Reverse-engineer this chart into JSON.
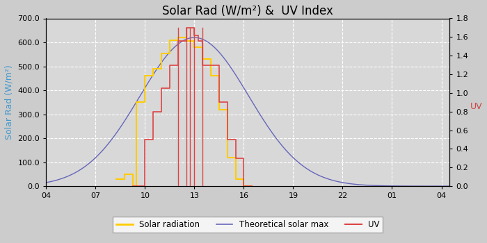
{
  "title": "Solar Rad (W/m²) &  UV Index",
  "ylabel_left": "Solar Rad (W/m²)",
  "ylabel_right": "UV",
  "ylabel_left_color": "#4499cc",
  "ylabel_right_color": "#cc4444",
  "background_color": "#cccccc",
  "plot_background": "#d8d8d8",
  "grid_color": "#bbbbbb",
  "x_ticks": [
    4,
    7,
    10,
    13,
    16,
    19,
    22,
    25,
    28
  ],
  "x_tick_labels": [
    "04",
    "07",
    "10",
    "13",
    "16",
    "19",
    "22",
    "01",
    "04"
  ],
  "xlim": [
    4,
    28.5
  ],
  "ylim_left": [
    0,
    700
  ],
  "ylim_right": [
    0,
    1.8
  ],
  "yticks_left": [
    0,
    100,
    200,
    300,
    400,
    500,
    600,
    700
  ],
  "ytick_labels_left": [
    "0.0",
    "100.0",
    "200.0",
    "300.0",
    "400.0",
    "500.0",
    "600.0",
    "700.0"
  ],
  "yticks_right": [
    0.0,
    0.2,
    0.4,
    0.6,
    0.8,
    1.0,
    1.2,
    1.4,
    1.6,
    1.8
  ],
  "solar_color": "#ffcc00",
  "theo_color": "#6666bb",
  "uv_color": "#dd4444",
  "theo_peak_x": 13.0,
  "theo_sigma": 3.3,
  "theo_peak_y": 620,
  "solar_step_x": [
    8.25,
    8.75,
    9.25,
    9.5,
    10.0,
    10.5,
    11.0,
    11.5,
    12.0,
    12.5,
    13.0,
    13.5,
    14.0,
    14.5,
    15.0,
    15.5,
    16.0,
    16.25,
    16.5
  ],
  "solar_step_y": [
    30,
    50,
    0,
    350,
    460,
    490,
    555,
    610,
    620,
    605,
    580,
    530,
    460,
    320,
    120,
    30,
    0,
    0,
    0
  ],
  "uv_step_x": [
    9.25,
    9.5,
    10.0,
    10.5,
    11.0,
    11.5,
    12.0,
    12.5,
    12.75,
    13.0,
    13.25,
    13.5,
    14.0,
    14.5,
    15.0,
    15.5,
    16.0,
    16.5
  ],
  "uv_step_y": [
    0.0,
    0.0,
    0.5,
    0.8,
    1.05,
    1.3,
    1.56,
    1.7,
    1.7,
    1.62,
    1.56,
    1.3,
    1.3,
    0.9,
    0.5,
    0.3,
    0.0,
    0.0
  ],
  "uv_spikes_x": [
    12.0,
    12.5,
    12.75,
    13.0,
    13.5
  ],
  "uv_spike_ymax": 1.7,
  "legend_solar": "Solar radiation",
  "legend_theo": "Theoretical solar max",
  "legend_uv": "UV",
  "title_fontsize": 12,
  "axis_fontsize": 9,
  "tick_fontsize": 8
}
